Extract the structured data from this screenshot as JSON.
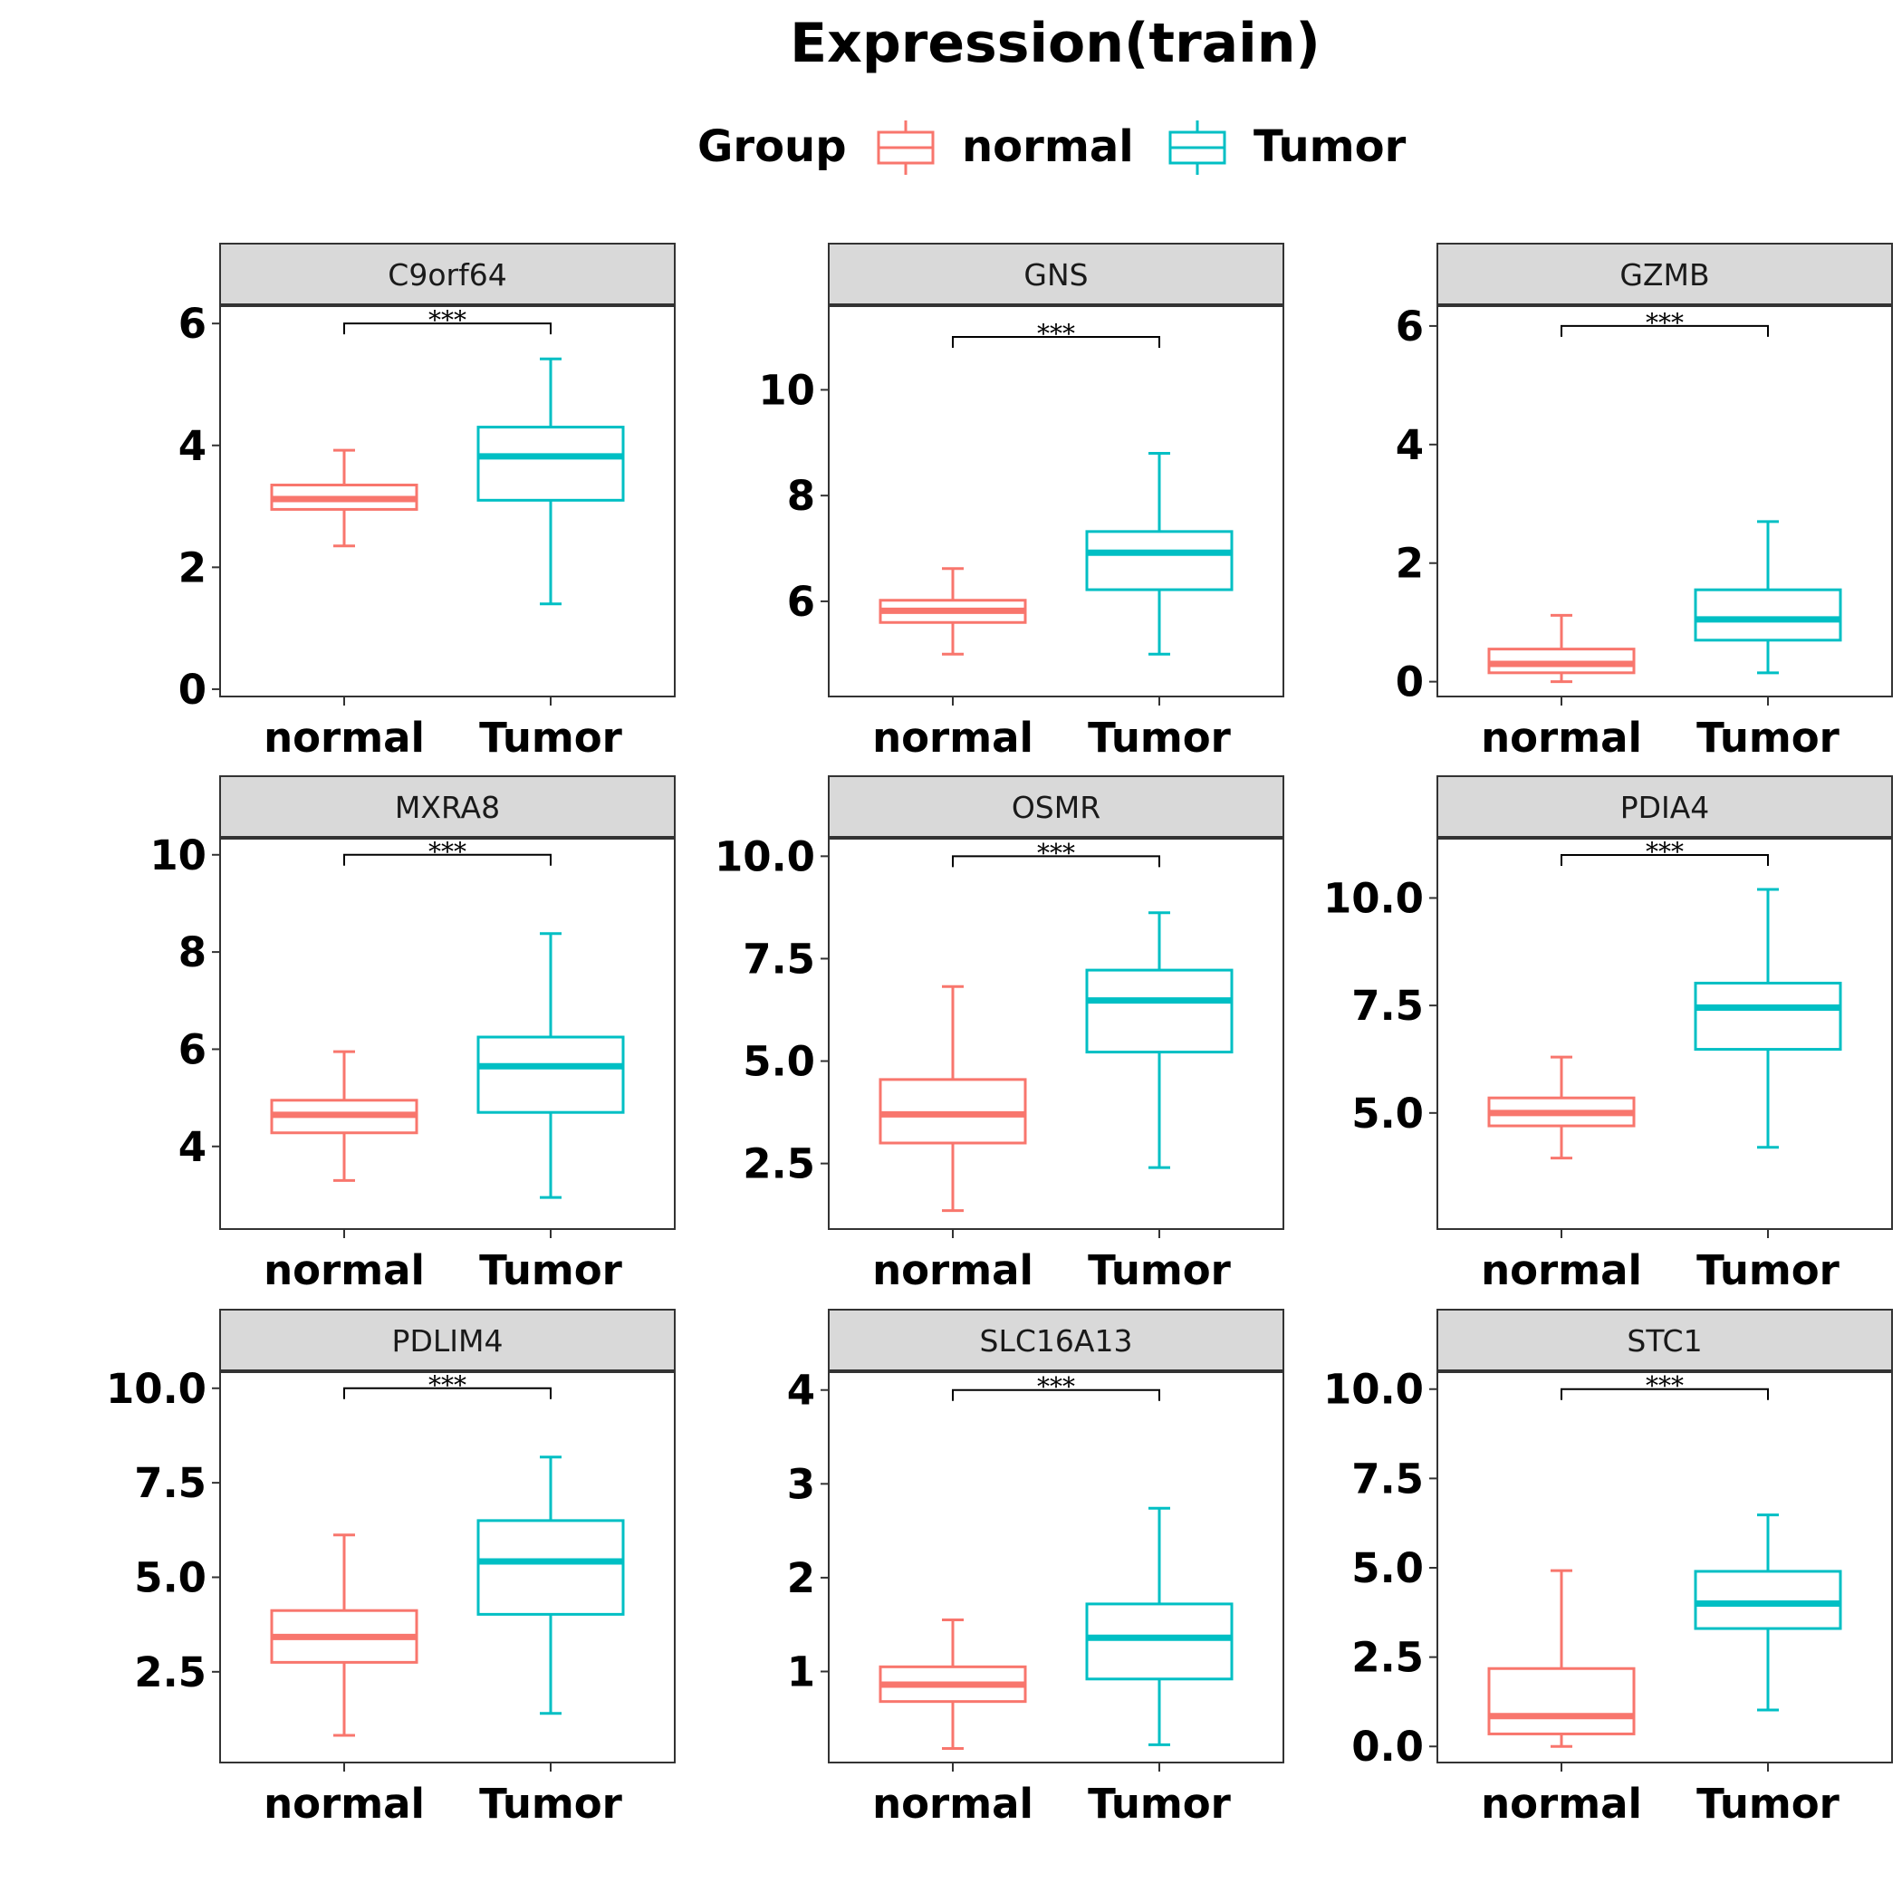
{
  "colors": {
    "normal": "#F8766D",
    "Tumor": "#00BFC4"
  },
  "legend": {
    "title": "Group",
    "items": [
      {
        "key": "normal",
        "label": "normal"
      },
      {
        "key": "Tumor",
        "label": "Tumor"
      }
    ]
  },
  "chart_data": {
    "type": "boxplot",
    "title": "Expression(train)",
    "legend_position": "top",
    "categories": [
      "normal",
      "Tumor"
    ],
    "panels": [
      {
        "name": "C9orf64",
        "ylim": [
          -0.12,
          6.3
        ],
        "yticks": [
          0,
          2,
          4,
          6
        ],
        "tick_labels": [
          "0",
          "2",
          "4",
          "6"
        ],
        "significance": {
          "label": "***",
          "y": 6.0
        },
        "boxes": [
          {
            "group": "normal",
            "min": 2.35,
            "q1": 2.95,
            "median": 3.12,
            "q3": 3.35,
            "max": 3.92
          },
          {
            "group": "Tumor",
            "min": 1.4,
            "q1": 3.1,
            "median": 3.82,
            "q3": 4.3,
            "max": 5.42
          }
        ]
      },
      {
        "name": "GNS",
        "ylim": [
          4.2,
          11.6
        ],
        "yticks": [
          6,
          8,
          10
        ],
        "tick_labels": [
          "6",
          "8",
          "10"
        ],
        "significance": {
          "label": "***",
          "y": 11.0
        },
        "boxes": [
          {
            "group": "normal",
            "min": 5.0,
            "q1": 5.6,
            "median": 5.82,
            "q3": 6.02,
            "max": 6.62
          },
          {
            "group": "Tumor",
            "min": 5.0,
            "q1": 6.22,
            "median": 6.92,
            "q3": 7.32,
            "max": 8.8
          }
        ]
      },
      {
        "name": "GZMB",
        "ylim": [
          -0.25,
          6.35
        ],
        "yticks": [
          0,
          2,
          4,
          6
        ],
        "tick_labels": [
          "0",
          "2",
          "4",
          "6"
        ],
        "significance": {
          "label": "***",
          "y": 6.0
        },
        "boxes": [
          {
            "group": "normal",
            "min": 0.0,
            "q1": 0.15,
            "median": 0.3,
            "q3": 0.55,
            "max": 1.12
          },
          {
            "group": "Tumor",
            "min": 0.15,
            "q1": 0.7,
            "median": 1.05,
            "q3": 1.55,
            "max": 2.7
          }
        ]
      },
      {
        "name": "MXRA8",
        "ylim": [
          2.3,
          10.35
        ],
        "yticks": [
          4,
          6,
          8,
          10
        ],
        "tick_labels": [
          "4",
          "6",
          "8",
          "10"
        ],
        "significance": {
          "label": "***",
          "y": 10.0
        },
        "boxes": [
          {
            "group": "normal",
            "min": 3.3,
            "q1": 4.28,
            "median": 4.65,
            "q3": 4.95,
            "max": 5.95
          },
          {
            "group": "Tumor",
            "min": 2.95,
            "q1": 4.7,
            "median": 5.65,
            "q3": 6.25,
            "max": 8.38
          }
        ]
      },
      {
        "name": "OSMR",
        "ylim": [
          0.9,
          10.45
        ],
        "yticks": [
          2.5,
          5.0,
          7.5,
          10.0
        ],
        "tick_labels": [
          "2.5",
          "5.0",
          "7.5",
          "10.0"
        ],
        "significance": {
          "label": "***",
          "y": 10.0
        },
        "boxes": [
          {
            "group": "normal",
            "min": 1.35,
            "q1": 3.0,
            "median": 3.7,
            "q3": 4.55,
            "max": 6.82
          },
          {
            "group": "Tumor",
            "min": 2.4,
            "q1": 5.22,
            "median": 6.48,
            "q3": 7.22,
            "max": 8.62
          }
        ]
      },
      {
        "name": "PDIA4",
        "ylim": [
          2.3,
          11.4
        ],
        "yticks": [
          5.0,
          7.5,
          10.0
        ],
        "tick_labels": [
          "5.0",
          "7.5",
          "10.0"
        ],
        "significance": {
          "label": "***",
          "y": 11.0
        },
        "boxes": [
          {
            "group": "normal",
            "min": 3.95,
            "q1": 4.7,
            "median": 5.0,
            "q3": 5.35,
            "max": 6.3
          },
          {
            "group": "Tumor",
            "min": 4.2,
            "q1": 6.48,
            "median": 7.45,
            "q3": 8.02,
            "max": 10.2
          }
        ]
      },
      {
        "name": "PDLIM4",
        "ylim": [
          0.1,
          10.45
        ],
        "yticks": [
          2.5,
          5.0,
          7.5,
          10.0
        ],
        "tick_labels": [
          "2.5",
          "5.0",
          "7.5",
          "10.0"
        ],
        "significance": {
          "label": "***",
          "y": 10.0
        },
        "boxes": [
          {
            "group": "normal",
            "min": 0.82,
            "q1": 2.75,
            "median": 3.42,
            "q3": 4.12,
            "max": 6.12
          },
          {
            "group": "Tumor",
            "min": 1.4,
            "q1": 4.02,
            "median": 5.42,
            "q3": 6.5,
            "max": 8.18
          }
        ]
      },
      {
        "name": "SLC16A13",
        "ylim": [
          0.03,
          4.2
        ],
        "yticks": [
          1,
          2,
          3,
          4
        ],
        "tick_labels": [
          "1",
          "2",
          "3",
          "4"
        ],
        "significance": {
          "label": "***",
          "y": 4.0
        },
        "boxes": [
          {
            "group": "normal",
            "min": 0.18,
            "q1": 0.68,
            "median": 0.86,
            "q3": 1.05,
            "max": 1.55
          },
          {
            "group": "Tumor",
            "min": 0.22,
            "q1": 0.92,
            "median": 1.36,
            "q3": 1.72,
            "max": 2.74
          }
        ]
      },
      {
        "name": "STC1",
        "ylim": [
          -0.45,
          10.5
        ],
        "yticks": [
          0.0,
          2.5,
          5.0,
          7.5,
          10.0
        ],
        "tick_labels": [
          "0.0",
          "2.5",
          "5.0",
          "7.5",
          "10.0"
        ],
        "significance": {
          "label": "***",
          "y": 10.0
        },
        "boxes": [
          {
            "group": "normal",
            "min": 0.0,
            "q1": 0.35,
            "median": 0.85,
            "q3": 2.18,
            "max": 4.92
          },
          {
            "group": "Tumor",
            "min": 1.02,
            "q1": 3.3,
            "median": 4.0,
            "q3": 4.9,
            "max": 6.48
          }
        ]
      }
    ]
  }
}
